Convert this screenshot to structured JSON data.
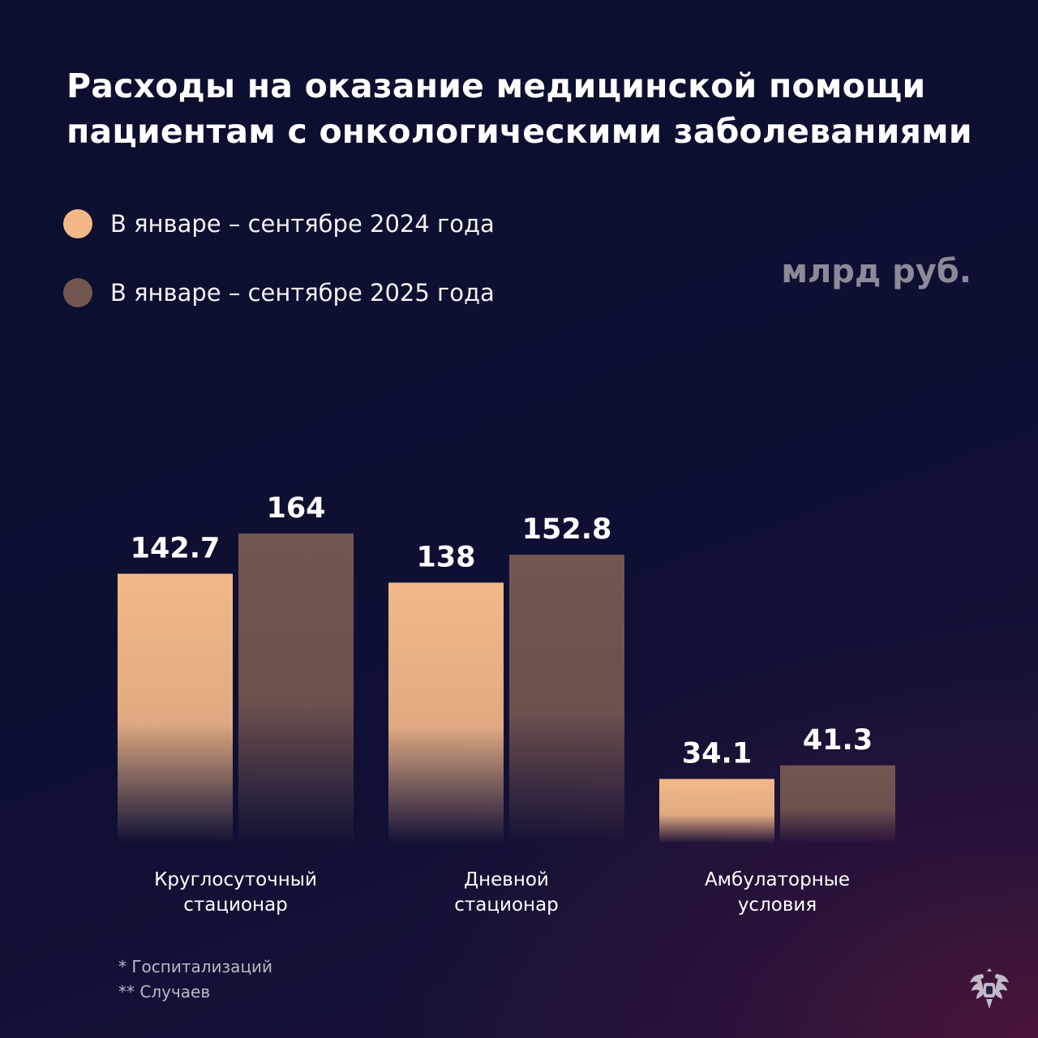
{
  "title_line1": "Расходы на оказание медицинской помощи",
  "title_line2": "пациентам с онкологическими заболеваниями",
  "unit": "млрд руб.",
  "footnotes": [
    "* Госпитализаций",
    "** Случаев"
  ],
  "emblem_icon": "double-headed-eagle-icon",
  "colors": {
    "series_2024": "#f2b888",
    "series_2025": "#745650"
  },
  "chart_data": {
    "type": "bar",
    "title": "Расходы на оказание медицинской помощи пациентам с онкологическими заболеваниями",
    "ylabel": "млрд руб.",
    "categories": [
      [
        "Круглосуточный",
        "стационар"
      ],
      [
        "Дневной",
        "стационар"
      ],
      [
        "Амбулаторные",
        "условия"
      ]
    ],
    "series": [
      {
        "name": "В январе – сентябре 2024 года",
        "values": [
          142.7,
          138,
          34.1
        ],
        "labels": [
          "142.7",
          "138",
          "34.1"
        ]
      },
      {
        "name": "В январе – сентябре 2025 года",
        "values": [
          164,
          152.8,
          41.3
        ],
        "labels": [
          "164",
          "152.8",
          "41.3"
        ]
      }
    ],
    "legend": "top-left",
    "grid": false
  }
}
